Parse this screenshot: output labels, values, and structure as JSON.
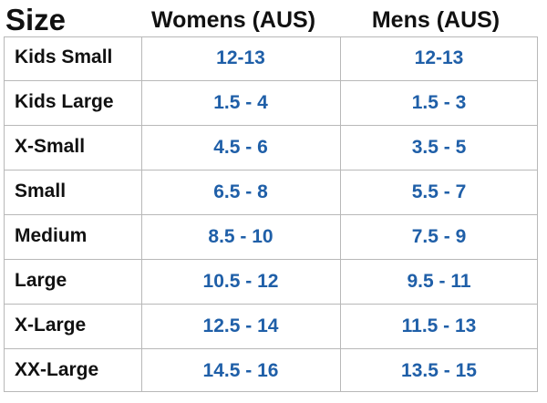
{
  "headers": {
    "size": "Size",
    "womens": "Womens (AUS)",
    "mens": "Mens (AUS)"
  },
  "colors": {
    "label_text": "#111111",
    "value_text": "#1f5fa8",
    "grid_line": "#b8b8b8"
  },
  "rows": [
    {
      "size": "Kids Small",
      "womens": "12-13",
      "mens": "12-13"
    },
    {
      "size": "Kids Large",
      "womens": "1.5 - 4",
      "mens": "1.5 - 3"
    },
    {
      "size": "X-Small",
      "womens": "4.5 - 6",
      "mens": "3.5 - 5"
    },
    {
      "size": "Small",
      "womens": "6.5 - 8",
      "mens": "5.5 - 7"
    },
    {
      "size": "Medium",
      "womens": "8.5 - 10",
      "mens": "7.5 - 9"
    },
    {
      "size": "Large",
      "womens": "10.5 - 12",
      "mens": "9.5 - 11"
    },
    {
      "size": "X-Large",
      "womens": "12.5 - 14",
      "mens": "11.5 - 13"
    },
    {
      "size": "XX-Large",
      "womens": "14.5 - 16",
      "mens": "13.5 - 15"
    }
  ]
}
